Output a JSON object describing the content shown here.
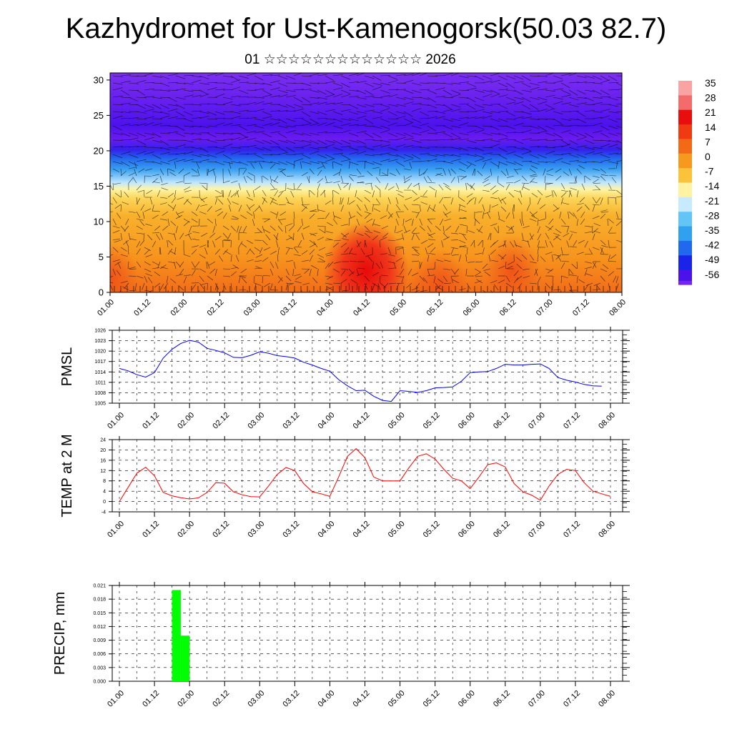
{
  "title": "Kazhydromet for Ust-Kamenogorsk(50.03 82.7)",
  "subtitle": "01 ☆☆☆☆☆☆☆☆☆☆☆☆☆ 2026",
  "colors": {
    "pmsl_line": "#0000ff",
    "temp_line": "#ff0000",
    "precip_bar": "#00ff00",
    "grid": "#000000",
    "frame": "#000000"
  },
  "chart_data": [
    {
      "id": "cross_section",
      "type": "heatmap",
      "title": "",
      "xlabel": "",
      "ylabel": "",
      "x_tick_labels": [
        "01.00",
        "01.12",
        "02.00",
        "02.12",
        "03.00",
        "03.12",
        "04.00",
        "04.12",
        "05.00",
        "05.12",
        "06.00",
        "06.12",
        "07.00",
        "07.12",
        "08.00"
      ],
      "y_ticks": [
        0,
        5,
        10,
        15,
        20,
        25,
        30
      ],
      "ylim": [
        0,
        31
      ],
      "legend": {
        "position": "right",
        "labels": [
          "35",
          "28",
          "21",
          "14",
          "7",
          "0",
          "-7",
          "-14",
          "-21",
          "-28",
          "-35",
          "-42",
          "-49",
          "-56"
        ]
      },
      "approx_temperature_by_height": [
        {
          "height": 0,
          "value": 10
        },
        {
          "height": 8,
          "value": 7
        },
        {
          "height": 13,
          "value": 3
        },
        {
          "height": 15,
          "value": -8
        },
        {
          "height": 18,
          "value": -25
        },
        {
          "height": 21,
          "value": -42
        },
        {
          "height": 23,
          "value": -55
        },
        {
          "height": 30,
          "value": -58
        }
      ],
      "warm_spots": [
        {
          "x": "04.12",
          "height": 3,
          "value": 21
        },
        {
          "x": "05.12",
          "height": 1,
          "value": 18
        },
        {
          "x": "01.00",
          "height": 2,
          "value": 14
        },
        {
          "x": "06.12",
          "height": 3,
          "value": 14
        }
      ]
    },
    {
      "id": "pmsl",
      "type": "line",
      "title": "",
      "ylabel": "PMSL",
      "x_tick_labels": [
        "01.00",
        "01.12",
        "02.00",
        "02.12",
        "03.00",
        "03.12",
        "04.00",
        "04.12",
        "05.00",
        "05.12",
        "06.00",
        "06.12",
        "07.00",
        "07.12",
        "08.00"
      ],
      "y_ticks": [
        1005,
        1008,
        1011,
        1014,
        1017,
        1020,
        1023,
        1026
      ],
      "ylim": [
        1005,
        1026
      ],
      "series": [
        {
          "name": "PMSL",
          "values": [
            1015,
            1014.3,
            1013.2,
            1012.5,
            1013.8,
            1018,
            1020.5,
            1022.2,
            1023.1,
            1022.6,
            1020.8,
            1020.2,
            1019.5,
            1018.2,
            1018.1,
            1018.8,
            1019.8,
            1019.4,
            1018.7,
            1018.4,
            1018,
            1016.8,
            1016,
            1015,
            1014.2,
            1011.8,
            1010,
            1008.6,
            1008.7,
            1007,
            1005.8,
            1005.5,
            1008.6,
            1008.4,
            1008.1,
            1008.6,
            1009.4,
            1009.5,
            1009.7,
            1011.3,
            1013.8,
            1014,
            1014.1,
            1015,
            1016.2,
            1016,
            1016,
            1016.2,
            1016.3,
            1015,
            1012.4,
            1011.6,
            1011.1,
            1010.4,
            1010,
            1009.9
          ],
          "x_range": [
            "01.00",
            "07.18"
          ]
        }
      ]
    },
    {
      "id": "temp2m",
      "type": "line",
      "title": "",
      "ylabel": "TEMP at 2 M",
      "x_tick_labels": [
        "01.00",
        "01.12",
        "02.00",
        "02.12",
        "03.00",
        "03.12",
        "04.00",
        "04.12",
        "05.00",
        "05.12",
        "06.00",
        "06.12",
        "07.00",
        "07.12",
        "08.00"
      ],
      "y_ticks": [
        -4,
        0,
        4,
        8,
        12,
        16,
        20,
        24
      ],
      "ylim": [
        -4,
        24
      ],
      "series": [
        {
          "name": "TEMP",
          "values": [
            0,
            5.5,
            11,
            13.3,
            10,
            3.5,
            2.2,
            1.5,
            1,
            1.4,
            3.5,
            7.3,
            7.1,
            3.8,
            2.6,
            1.9,
            1.8,
            6,
            10.5,
            13.2,
            12,
            7,
            3.8,
            3,
            2,
            9.5,
            17.5,
            20.5,
            17,
            9.5,
            8,
            8,
            8,
            13,
            17.5,
            18.5,
            16.5,
            12.5,
            9,
            8,
            5,
            9.5,
            14.3,
            15,
            13.4,
            7,
            3.8,
            2.5,
            0.5,
            6,
            10.5,
            12.5,
            12,
            7.3,
            4,
            3,
            2
          ]
        }
      ]
    },
    {
      "id": "precip",
      "type": "bar",
      "title": "",
      "ylabel": "PRECIP, mm",
      "x_tick_labels": [
        "01.00",
        "01.12",
        "02.00",
        "02.12",
        "03.00",
        "03.12",
        "04.00",
        "04.12",
        "05.00",
        "05.12",
        "06.00",
        "06.12",
        "07.00",
        "07.12",
        "08.00"
      ],
      "y_ticks": [
        "0.000",
        "0.003",
        "0.006",
        "0.009",
        "0.012",
        "0.015",
        "0.018",
        "0.021"
      ],
      "ylim": [
        0,
        0.021
      ],
      "bars": [
        {
          "start": "01.18",
          "end": "01.21",
          "value": 0.02
        },
        {
          "start": "01.21",
          "end": "02.00",
          "value": 0.01
        }
      ]
    }
  ]
}
